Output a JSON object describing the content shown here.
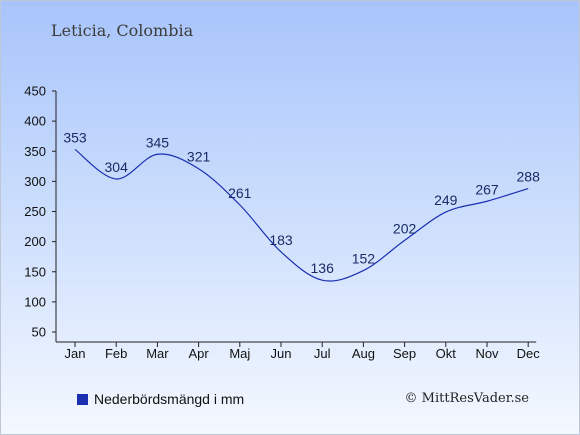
{
  "header": {
    "location": "Leticia, Colombia"
  },
  "legend": {
    "label": "Nederbördsmängd i mm",
    "color": "#1a2fb0"
  },
  "footer": {
    "copyright": "© MittResVader.se"
  },
  "chart_data": {
    "type": "line",
    "categories": [
      "Jan",
      "Feb",
      "Mar",
      "Apr",
      "Maj",
      "Jun",
      "Jul",
      "Aug",
      "Sep",
      "Okt",
      "Nov",
      "Dec"
    ],
    "series": [
      {
        "name": "Nederbördsmängd i mm",
        "values": [
          353,
          304,
          345,
          321,
          261,
          183,
          136,
          152,
          202,
          249,
          267,
          288
        ],
        "color": "#1a2fb0"
      }
    ],
    "yticks": [
      50,
      100,
      150,
      200,
      250,
      300,
      350,
      400,
      450
    ],
    "ylim": [
      50,
      450
    ],
    "grid": false,
    "legend_position": "bottom-left"
  }
}
